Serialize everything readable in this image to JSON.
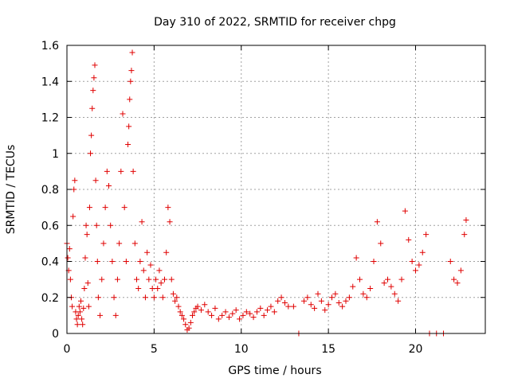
{
  "chart_data": {
    "type": "scatter",
    "title": "Day 310 of 2022, SRMTID for receiver chpg",
    "xlabel": "GPS time / hours",
    "ylabel": "SRMTID / TECUs",
    "xlim": [
      0,
      24
    ],
    "ylim": [
      0,
      1.6
    ],
    "x_ticks": [
      0,
      5,
      10,
      15,
      20
    ],
    "y_ticks": [
      0,
      0.2,
      0.4,
      0.6,
      0.8,
      1,
      1.2,
      1.4,
      1.6
    ],
    "x_tick_labels": [
      "0",
      "5",
      "10",
      "15",
      "20"
    ],
    "y_tick_labels": [
      "0",
      "0.2",
      "0.4",
      "0.6",
      "0.8",
      "1",
      "1.2",
      "1.4",
      "1.6"
    ],
    "grid": true,
    "marker": "plus",
    "color": "#e00000",
    "series": [
      {
        "name": "SRMTID",
        "points": [
          [
            0.0,
            0.5
          ],
          [
            0.05,
            0.42
          ],
          [
            0.1,
            0.35
          ],
          [
            0.15,
            0.47
          ],
          [
            0.2,
            0.3
          ],
          [
            0.25,
            0.2
          ],
          [
            0.3,
            0.15
          ],
          [
            0.35,
            0.65
          ],
          [
            0.4,
            0.8
          ],
          [
            0.45,
            0.85
          ],
          [
            0.5,
            0.12
          ],
          [
            0.55,
            0.08
          ],
          [
            0.6,
            0.05
          ],
          [
            0.65,
            0.1
          ],
          [
            0.7,
            0.15
          ],
          [
            0.75,
            0.12
          ],
          [
            0.8,
            0.18
          ],
          [
            0.85,
            0.08
          ],
          [
            0.9,
            0.05
          ],
          [
            0.95,
            0.14
          ],
          [
            1.0,
            0.25
          ],
          [
            1.05,
            0.42
          ],
          [
            1.1,
            0.6
          ],
          [
            1.15,
            0.55
          ],
          [
            1.2,
            0.28
          ],
          [
            1.25,
            0.15
          ],
          [
            1.3,
            0.7
          ],
          [
            1.35,
            1.0
          ],
          [
            1.4,
            1.1
          ],
          [
            1.45,
            1.25
          ],
          [
            1.5,
            1.35
          ],
          [
            1.55,
            1.42
          ],
          [
            1.6,
            1.49
          ],
          [
            1.65,
            0.85
          ],
          [
            1.7,
            0.6
          ],
          [
            1.75,
            0.4
          ],
          [
            1.8,
            0.2
          ],
          [
            1.9,
            0.1
          ],
          [
            2.0,
            0.3
          ],
          [
            2.1,
            0.5
          ],
          [
            2.2,
            0.7
          ],
          [
            2.3,
            0.9
          ],
          [
            2.4,
            0.82
          ],
          [
            2.5,
            0.6
          ],
          [
            2.6,
            0.4
          ],
          [
            2.7,
            0.2
          ],
          [
            2.8,
            0.1
          ],
          [
            2.9,
            0.3
          ],
          [
            3.0,
            0.5
          ],
          [
            3.1,
            0.9
          ],
          [
            3.2,
            1.22
          ],
          [
            3.3,
            0.7
          ],
          [
            3.4,
            0.4
          ],
          [
            3.5,
            1.05
          ],
          [
            3.55,
            1.15
          ],
          [
            3.6,
            1.3
          ],
          [
            3.65,
            1.4
          ],
          [
            3.7,
            1.46
          ],
          [
            3.75,
            1.56
          ],
          [
            3.8,
            0.9
          ],
          [
            3.9,
            0.5
          ],
          [
            4.0,
            0.3
          ],
          [
            4.1,
            0.25
          ],
          [
            4.2,
            0.4
          ],
          [
            4.3,
            0.62
          ],
          [
            4.4,
            0.35
          ],
          [
            4.5,
            0.2
          ],
          [
            4.6,
            0.45
          ],
          [
            4.7,
            0.3
          ],
          [
            4.8,
            0.38
          ],
          [
            4.9,
            0.25
          ],
          [
            5.0,
            0.2
          ],
          [
            5.1,
            0.3
          ],
          [
            5.2,
            0.25
          ],
          [
            5.3,
            0.35
          ],
          [
            5.4,
            0.28
          ],
          [
            5.5,
            0.2
          ],
          [
            5.6,
            0.3
          ],
          [
            5.7,
            0.45
          ],
          [
            5.8,
            0.7
          ],
          [
            5.9,
            0.62
          ],
          [
            6.0,
            0.3
          ],
          [
            6.1,
            0.22
          ],
          [
            6.2,
            0.18
          ],
          [
            6.3,
            0.2
          ],
          [
            6.4,
            0.15
          ],
          [
            6.5,
            0.12
          ],
          [
            6.6,
            0.1
          ],
          [
            6.7,
            0.08
          ],
          [
            6.8,
            0.05
          ],
          [
            6.9,
            0.02
          ],
          [
            7.0,
            0.03
          ],
          [
            7.1,
            0.06
          ],
          [
            7.2,
            0.1
          ],
          [
            7.3,
            0.12
          ],
          [
            7.4,
            0.14
          ],
          [
            7.5,
            0.15
          ],
          [
            7.7,
            0.13
          ],
          [
            7.9,
            0.16
          ],
          [
            8.1,
            0.12
          ],
          [
            8.3,
            0.1
          ],
          [
            8.5,
            0.14
          ],
          [
            8.7,
            0.08
          ],
          [
            8.9,
            0.1
          ],
          [
            9.1,
            0.12
          ],
          [
            9.3,
            0.09
          ],
          [
            9.5,
            0.11
          ],
          [
            9.7,
            0.13
          ],
          [
            9.9,
            0.08
          ],
          [
            10.1,
            0.1
          ],
          [
            10.3,
            0.12
          ],
          [
            10.5,
            0.11
          ],
          [
            10.7,
            0.09
          ],
          [
            10.9,
            0.12
          ],
          [
            11.1,
            0.14
          ],
          [
            11.3,
            0.1
          ],
          [
            11.5,
            0.13
          ],
          [
            11.7,
            0.15
          ],
          [
            11.9,
            0.12
          ],
          [
            12.1,
            0.18
          ],
          [
            12.3,
            0.2
          ],
          [
            12.5,
            0.17
          ],
          [
            12.7,
            0.15
          ],
          [
            13.0,
            0.15
          ],
          [
            13.3,
            0.0
          ],
          [
            13.6,
            0.18
          ],
          [
            13.8,
            0.2
          ],
          [
            14.0,
            0.16
          ],
          [
            14.2,
            0.14
          ],
          [
            14.4,
            0.22
          ],
          [
            14.6,
            0.18
          ],
          [
            14.8,
            0.13
          ],
          [
            15.0,
            0.16
          ],
          [
            15.2,
            0.2
          ],
          [
            15.4,
            0.22
          ],
          [
            15.6,
            0.17
          ],
          [
            15.8,
            0.15
          ],
          [
            16.0,
            0.18
          ],
          [
            16.2,
            0.2
          ],
          [
            16.4,
            0.26
          ],
          [
            16.6,
            0.42
          ],
          [
            16.8,
            0.3
          ],
          [
            17.0,
            0.22
          ],
          [
            17.2,
            0.2
          ],
          [
            17.4,
            0.25
          ],
          [
            17.6,
            0.4
          ],
          [
            17.8,
            0.62
          ],
          [
            18.0,
            0.5
          ],
          [
            18.2,
            0.28
          ],
          [
            18.4,
            0.3
          ],
          [
            18.6,
            0.26
          ],
          [
            18.8,
            0.22
          ],
          [
            19.0,
            0.18
          ],
          [
            19.2,
            0.3
          ],
          [
            19.4,
            0.68
          ],
          [
            19.6,
            0.52
          ],
          [
            19.8,
            0.4
          ],
          [
            20.0,
            0.35
          ],
          [
            20.2,
            0.38
          ],
          [
            20.4,
            0.45
          ],
          [
            20.6,
            0.55
          ],
          [
            20.8,
            0.0
          ],
          [
            21.2,
            0.0
          ],
          [
            21.6,
            0.0
          ],
          [
            22.0,
            0.4
          ],
          [
            22.2,
            0.3
          ],
          [
            22.4,
            0.28
          ],
          [
            22.6,
            0.35
          ],
          [
            22.8,
            0.55
          ],
          [
            22.9,
            0.63
          ]
        ]
      }
    ]
  }
}
